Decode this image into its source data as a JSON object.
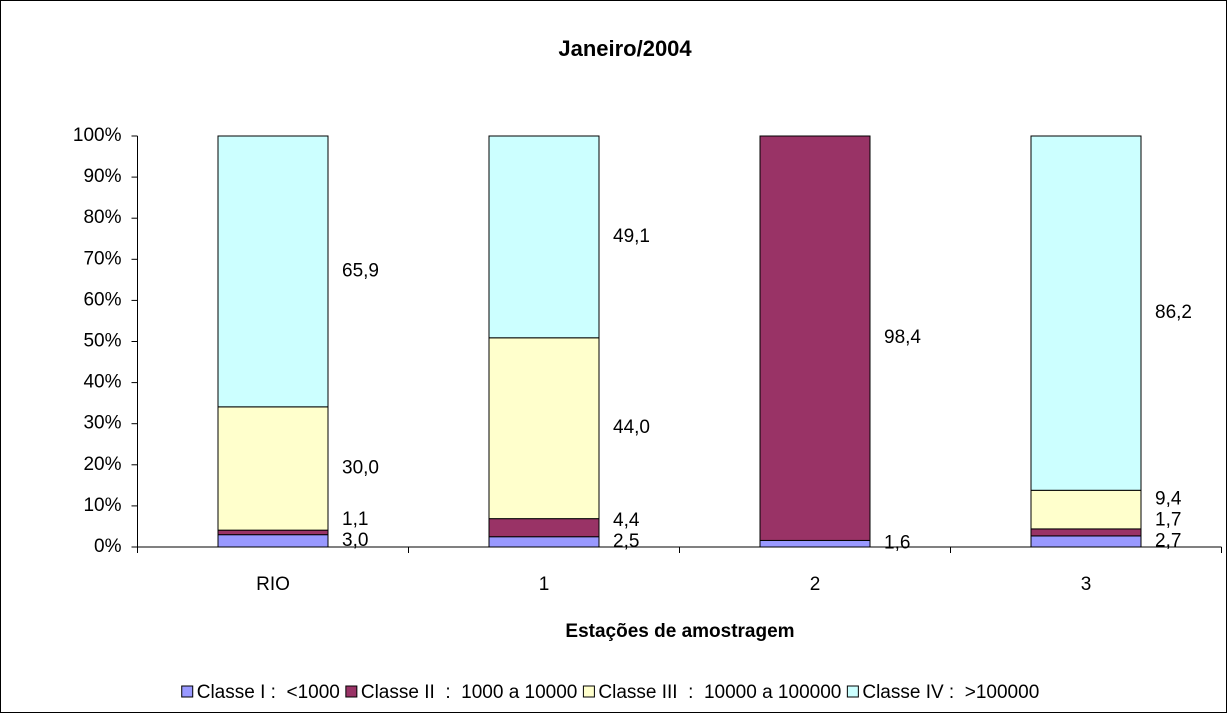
{
  "chart_data": {
    "type": "stacked_bar_percent",
    "title": "Janeiro/2004",
    "x_label": "Estações de amostragem",
    "categories": [
      "RIO",
      "1",
      "2",
      "3"
    ],
    "series": [
      {
        "name": "Classe I :  <1000",
        "color": "#9999ff",
        "values": [
          3.0,
          2.5,
          1.6,
          2.7
        ],
        "value_labels": [
          "3,0",
          "2,5",
          "1,6",
          "2,7"
        ]
      },
      {
        "name": "Classe II  :  1000 a 10000",
        "color": "#993366",
        "values": [
          1.1,
          4.4,
          98.4,
          1.7
        ],
        "value_labels": [
          "1,1",
          "4,4",
          "98,4",
          "1,7"
        ]
      },
      {
        "name": "Classe III  :  10000 a 100000",
        "color": "#ffffcc",
        "values": [
          30.0,
          44.0,
          0,
          9.4
        ],
        "value_labels": [
          "30,0",
          "44,0",
          null,
          "9,4"
        ]
      },
      {
        "name": "Classe IV :  >100000",
        "color": "#ccffff",
        "values": [
          65.9,
          49.1,
          0,
          86.2
        ],
        "value_labels": [
          "65,9",
          "49,1",
          null,
          "86,2"
        ]
      }
    ],
    "ylim": [
      0,
      100
    ],
    "yticks": [
      {
        "value": 0,
        "label": "0%"
      },
      {
        "value": 10,
        "label": "10%"
      },
      {
        "value": 20,
        "label": "20%"
      },
      {
        "value": 30,
        "label": "30%"
      },
      {
        "value": 40,
        "label": "40%"
      },
      {
        "value": 50,
        "label": "50%"
      },
      {
        "value": 60,
        "label": "60%"
      },
      {
        "value": 70,
        "label": "70%"
      },
      {
        "value": 80,
        "label": "80%"
      },
      {
        "value": 90,
        "label": "90%"
      },
      {
        "value": 100,
        "label": "100%"
      }
    ],
    "legend": "bottom"
  }
}
